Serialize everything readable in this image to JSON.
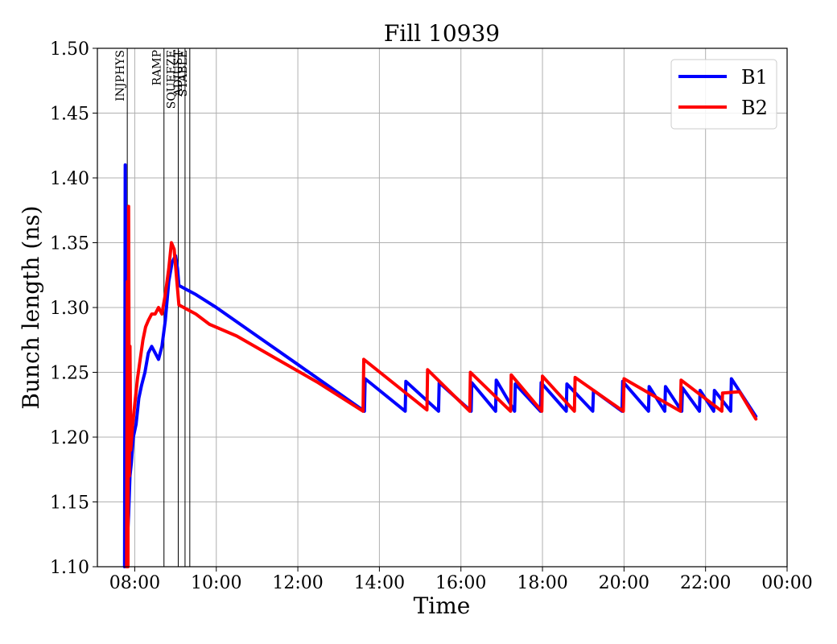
{
  "chart_data": {
    "type": "line",
    "title": "Fill 10939",
    "xlabel": "Time",
    "ylabel": "Bunch length (ns)",
    "xlim": [
      "07:05",
      "00:00"
    ],
    "ylim": [
      1.1,
      1.5
    ],
    "x_ticks": [
      "08:00",
      "10:00",
      "12:00",
      "14:00",
      "16:00",
      "18:00",
      "20:00",
      "22:00",
      "00:00"
    ],
    "y_ticks": [
      "1.10",
      "1.15",
      "1.20",
      "1.25",
      "1.30",
      "1.35",
      "1.40",
      "1.45",
      "1.50"
    ],
    "grid": true,
    "legend_position": "top-right",
    "phases": [
      {
        "label": "INJPHYS",
        "time": "07:49"
      },
      {
        "label": "RAMP",
        "time": "08:43"
      },
      {
        "label": "SQUEEZE",
        "time": "09:04"
      },
      {
        "label": "ADJUST",
        "time": "09:14"
      },
      {
        "label": "STABLE",
        "time": "09:21"
      }
    ],
    "series": [
      {
        "name": "B1",
        "color": "#0000ff",
        "points": [
          [
            "07:45",
            1.1
          ],
          [
            "07:46",
            1.41
          ],
          [
            "07:47",
            1.13
          ],
          [
            "07:48",
            1.3
          ],
          [
            "07:49",
            1.12
          ],
          [
            "07:51",
            1.14
          ],
          [
            "07:53",
            1.17
          ],
          [
            "07:55",
            1.18
          ],
          [
            "07:58",
            1.2
          ],
          [
            "08:02",
            1.21
          ],
          [
            "08:06",
            1.23
          ],
          [
            "08:10",
            1.24
          ],
          [
            "08:15",
            1.25
          ],
          [
            "08:20",
            1.265
          ],
          [
            "08:25",
            1.27
          ],
          [
            "08:30",
            1.265
          ],
          [
            "08:35",
            1.26
          ],
          [
            "08:40",
            1.27
          ],
          [
            "08:45",
            1.29
          ],
          [
            "08:50",
            1.32
          ],
          [
            "08:55",
            1.335
          ],
          [
            "09:00",
            1.34
          ],
          [
            "09:03",
            1.33
          ],
          [
            "09:05",
            1.317
          ],
          [
            "09:30",
            1.31
          ],
          [
            "10:00",
            1.3
          ],
          [
            "11:00",
            1.278
          ],
          [
            "12:00",
            1.256
          ],
          [
            "13:00",
            1.234
          ],
          [
            "13:38",
            1.22
          ],
          [
            "13:39",
            1.245
          ],
          [
            "14:38",
            1.22
          ],
          [
            "14:39",
            1.243
          ],
          [
            "15:27",
            1.22
          ],
          [
            "15:28",
            1.242
          ],
          [
            "16:15",
            1.22
          ],
          [
            "16:16",
            1.242
          ],
          [
            "16:51",
            1.22
          ],
          [
            "16:52",
            1.244
          ],
          [
            "17:19",
            1.22
          ],
          [
            "17:20",
            1.241
          ],
          [
            "17:57",
            1.22
          ],
          [
            "17:58",
            1.242
          ],
          [
            "18:35",
            1.22
          ],
          [
            "18:36",
            1.241
          ],
          [
            "19:14",
            1.22
          ],
          [
            "19:15",
            1.236
          ],
          [
            "19:57",
            1.22
          ],
          [
            "19:58",
            1.243
          ],
          [
            "20:36",
            1.22
          ],
          [
            "20:37",
            1.239
          ],
          [
            "21:00",
            1.22
          ],
          [
            "21:01",
            1.239
          ],
          [
            "21:25",
            1.22
          ],
          [
            "21:26",
            1.238
          ],
          [
            "21:51",
            1.22
          ],
          [
            "21:52",
            1.236
          ],
          [
            "22:12",
            1.22
          ],
          [
            "22:13",
            1.236
          ],
          [
            "22:37",
            1.22
          ],
          [
            "22:38",
            1.245
          ],
          [
            "23:14",
            1.216
          ]
        ]
      },
      {
        "name": "B2",
        "color": "#ff0000",
        "points": [
          [
            "07:48",
            1.1
          ],
          [
            "07:49",
            1.32
          ],
          [
            "07:50",
            1.1
          ],
          [
            "07:51",
            1.378
          ],
          [
            "07:52",
            1.17
          ],
          [
            "07:53",
            1.27
          ],
          [
            "07:54",
            1.19
          ],
          [
            "07:57",
            1.21
          ],
          [
            "08:00",
            1.225
          ],
          [
            "08:04",
            1.245
          ],
          [
            "08:08",
            1.26
          ],
          [
            "08:12",
            1.275
          ],
          [
            "08:16",
            1.285
          ],
          [
            "08:20",
            1.29
          ],
          [
            "08:25",
            1.295
          ],
          [
            "08:30",
            1.295
          ],
          [
            "08:35",
            1.3
          ],
          [
            "08:40",
            1.295
          ],
          [
            "08:45",
            1.31
          ],
          [
            "08:50",
            1.33
          ],
          [
            "08:54",
            1.35
          ],
          [
            "08:58",
            1.345
          ],
          [
            "09:02",
            1.32
          ],
          [
            "09:05",
            1.302
          ],
          [
            "09:30",
            1.295
          ],
          [
            "09:50",
            1.287
          ],
          [
            "10:30",
            1.278
          ],
          [
            "11:30",
            1.26
          ],
          [
            "12:30",
            1.242
          ],
          [
            "13:36",
            1.22
          ],
          [
            "13:37",
            1.26
          ],
          [
            "15:10",
            1.221
          ],
          [
            "15:11",
            1.252
          ],
          [
            "16:13",
            1.22
          ],
          [
            "16:14",
            1.25
          ],
          [
            "17:13",
            1.22
          ],
          [
            "17:14",
            1.248
          ],
          [
            "17:59",
            1.22
          ],
          [
            "18:00",
            1.247
          ],
          [
            "18:47",
            1.22
          ],
          [
            "18:48",
            1.246
          ],
          [
            "19:59",
            1.22
          ],
          [
            "20:00",
            1.245
          ],
          [
            "21:23",
            1.22
          ],
          [
            "21:24",
            1.244
          ],
          [
            "22:24",
            1.22
          ],
          [
            "22:25",
            1.234
          ],
          [
            "22:50",
            1.235
          ],
          [
            "23:14",
            1.214
          ]
        ]
      }
    ]
  }
}
